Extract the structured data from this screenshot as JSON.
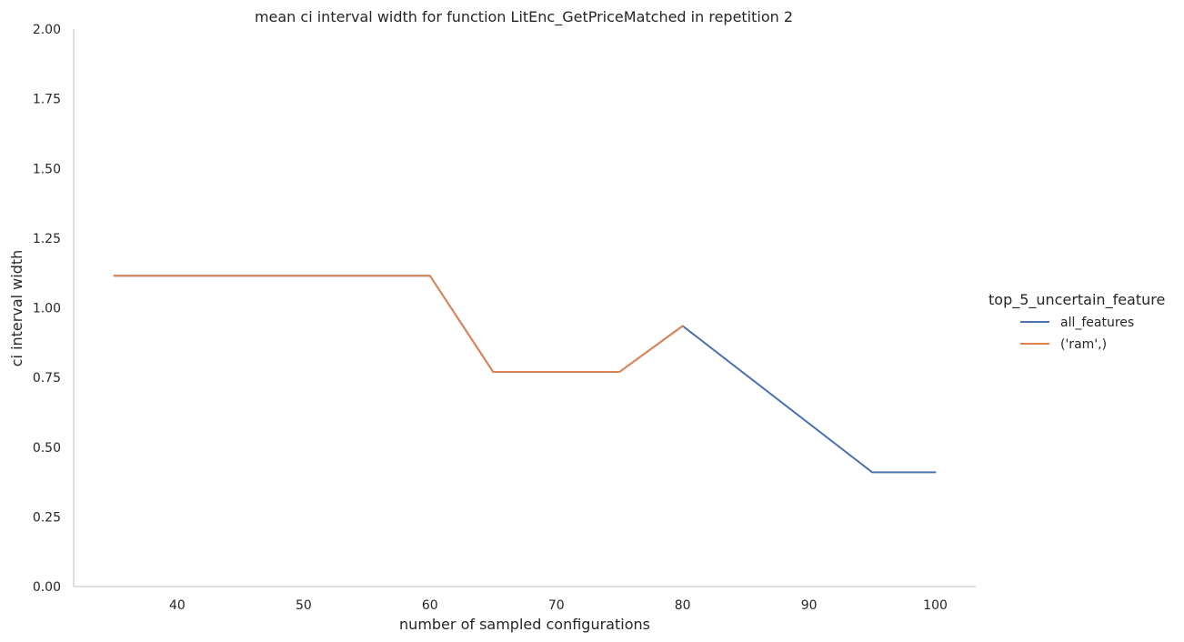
{
  "chart_data": {
    "type": "line",
    "title": "mean ci interval width for function LitEnc_GetPriceMatched in repetition 2",
    "xlabel": "number of sampled configurations",
    "ylabel": "ci interval width",
    "xlim": [
      31.8,
      103.2
    ],
    "ylim": [
      0,
      2
    ],
    "xticks": [
      40,
      50,
      60,
      70,
      80,
      90,
      100
    ],
    "xtick_labels": [
      "40",
      "50",
      "60",
      "70",
      "80",
      "90",
      "100"
    ],
    "yticks": [
      0,
      0.25,
      0.5,
      0.75,
      1.0,
      1.25,
      1.5,
      1.75,
      2.0
    ],
    "ytick_labels": [
      "0.00",
      "0.25",
      "0.50",
      "0.75",
      "1.00",
      "1.25",
      "1.50",
      "1.75",
      "2.00"
    ],
    "grid": false,
    "legend": {
      "title": "top_5_uncertain_feature",
      "placement": "right"
    },
    "series": [
      {
        "name": "all_features",
        "color": "#4c72b0",
        "x": [
          35,
          40,
          45,
          50,
          55,
          60,
          65,
          70,
          75,
          80,
          85,
          90,
          95,
          100
        ],
        "y": [
          1.115,
          1.115,
          1.115,
          1.115,
          1.115,
          1.115,
          0.77,
          0.77,
          0.77,
          0.935,
          0.76,
          0.585,
          0.41,
          0.41
        ]
      },
      {
        "name": "('ram',)",
        "color": "#dd8452",
        "x": [
          35,
          40,
          45,
          50,
          55,
          60,
          65,
          70,
          75,
          80
        ],
        "y": [
          1.115,
          1.115,
          1.115,
          1.115,
          1.115,
          1.115,
          0.77,
          0.77,
          0.77,
          0.935
        ]
      }
    ]
  }
}
